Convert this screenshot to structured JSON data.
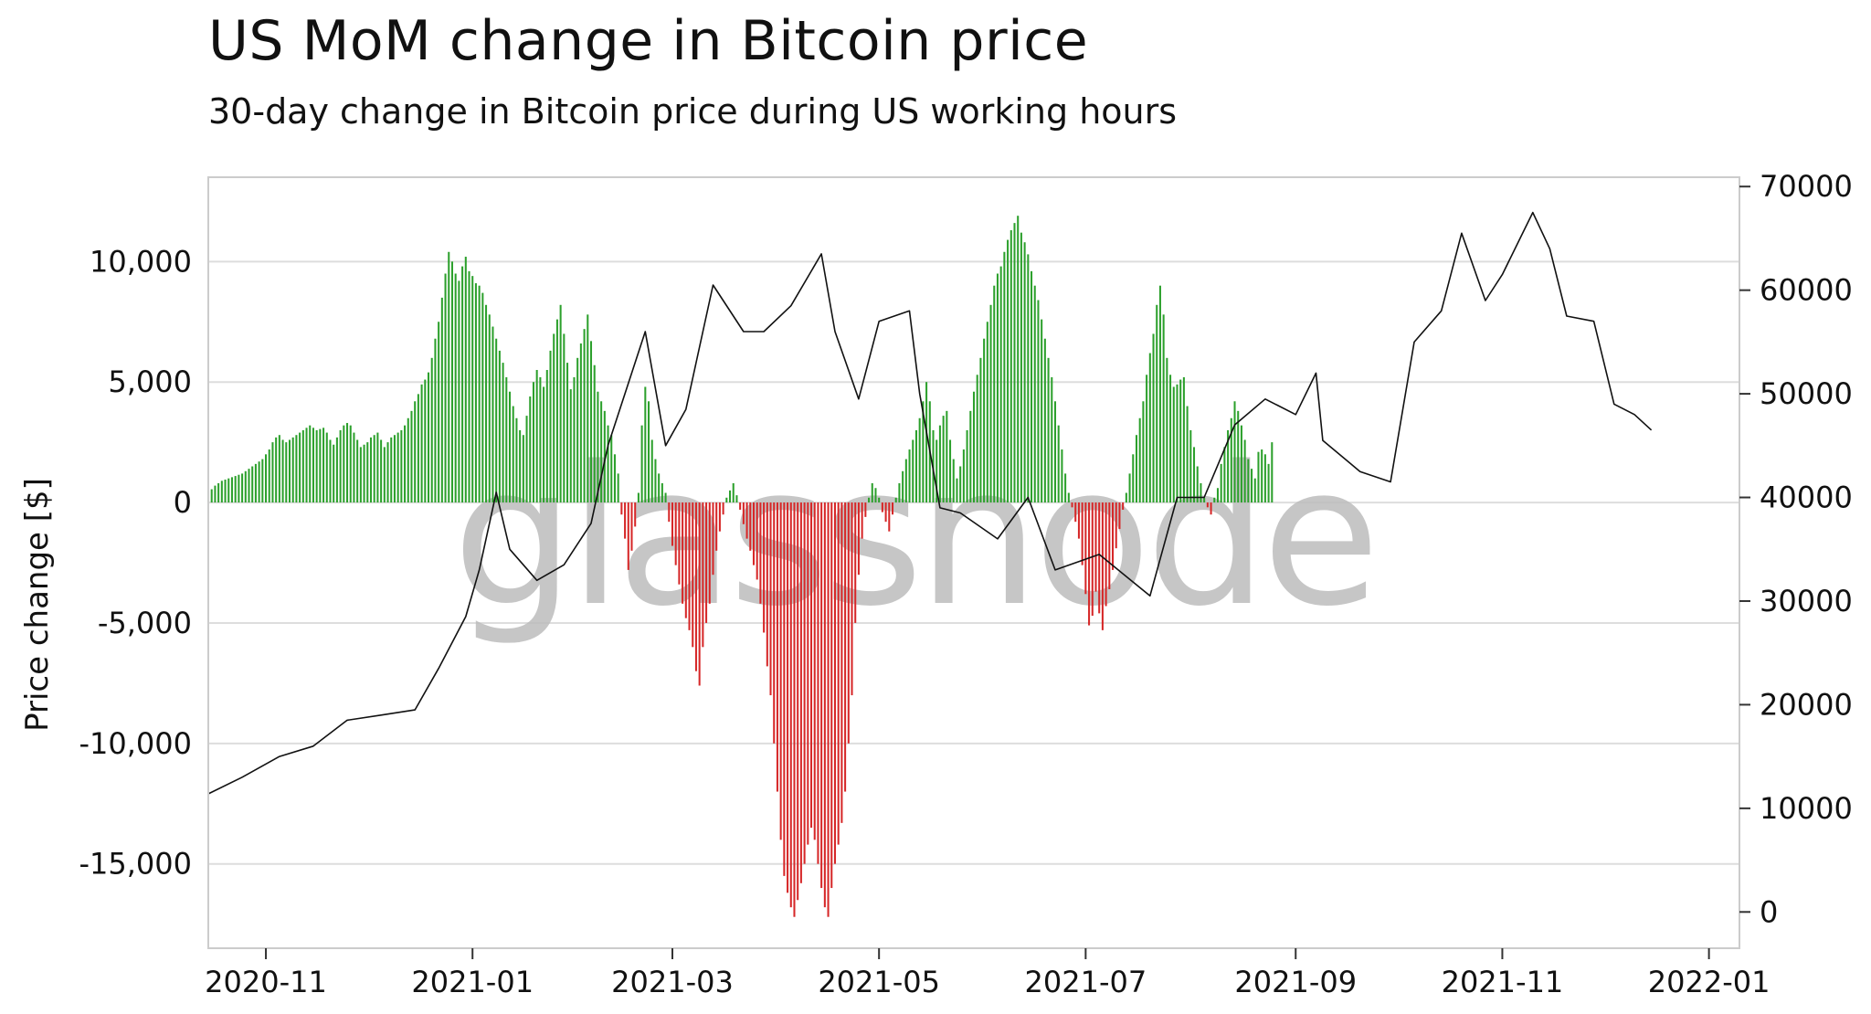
{
  "chart_data": {
    "type": "bar+line",
    "title": "US MoM change in Bitcoin price",
    "subtitle": "30-day change in Bitcoin price during US working hours",
    "ylabel": "Price change [$]",
    "ylabel_right": "",
    "watermark": "glassnode",
    "x_range": [
      "2020-10-15",
      "2022-01-10"
    ],
    "ylim": [
      -18500,
      13500
    ],
    "ylim_right": [
      -3500,
      70900
    ],
    "x_ticks": [
      "2020-11",
      "2021-01",
      "2021-03",
      "2021-05",
      "2021-07",
      "2021-09",
      "2021-11",
      "2022-01"
    ],
    "y_ticks": [
      -15000,
      -10000,
      -5000,
      0,
      5000,
      10000
    ],
    "y_tick_labels": [
      "-15,000",
      "-10,000",
      "-5,000",
      "0",
      "5,000",
      "10,000"
    ],
    "y_right_ticks": [
      0,
      10000,
      20000,
      30000,
      40000,
      50000,
      60000,
      70000
    ],
    "y_right_tick_labels": [
      "0",
      "10000",
      "20000",
      "30000",
      "40000",
      "50000",
      "60000",
      "70000"
    ],
    "colors": {
      "positive": "#2ca02c",
      "negative": "#d62728",
      "price_line": "#111111",
      "grid": "#dddddd"
    },
    "series": [
      {
        "name": "30-day change",
        "kind": "bar",
        "x_start": "2020-10-15",
        "x_step_days": 1,
        "values": [
          500,
          550,
          700,
          800,
          900,
          950,
          1000,
          1050,
          1100,
          1150,
          1200,
          1300,
          1400,
          1500,
          1600,
          1700,
          1800,
          2000,
          2200,
          2500,
          2700,
          2800,
          2600,
          2500,
          2600,
          2700,
          2800,
          2900,
          3000,
          3100,
          3200,
          3100,
          3000,
          3050,
          3100,
          2900,
          2600,
          2400,
          2700,
          3000,
          3200,
          3300,
          3200,
          2900,
          2600,
          2300,
          2400,
          2500,
          2700,
          2800,
          2900,
          2600,
          2300,
          2500,
          2700,
          2800,
          2900,
          3000,
          3200,
          3500,
          3800,
          4200,
          4500,
          4900,
          5100,
          5400,
          6000,
          6800,
          7500,
          8500,
          9500,
          10400,
          10000,
          9500,
          9200,
          9800,
          10200,
          9600,
          9400,
          9100,
          9000,
          8700,
          8200,
          7800,
          7300,
          6800,
          6300,
          5800,
          5200,
          4600,
          4000,
          3500,
          3000,
          2800,
          3600,
          4400,
          5000,
          5500,
          5200,
          4800,
          5500,
          6300,
          7000,
          7600,
          8200,
          7000,
          5800,
          4700,
          5200,
          6000,
          6600,
          7200,
          7800,
          6700,
          5700,
          4600,
          4200,
          3800,
          3200,
          2800,
          2000,
          1200,
          -500,
          -1500,
          -2800,
          -2000,
          -1000,
          400,
          3200,
          4800,
          4200,
          2600,
          1800,
          1200,
          800,
          400,
          -800,
          -1800,
          -2600,
          -3400,
          -4200,
          -4800,
          -5300,
          -6000,
          -7000,
          -7600,
          -6000,
          -5000,
          -4200,
          -3000,
          -2000,
          -1200,
          -500,
          200,
          500,
          800,
          300,
          -300,
          -900,
          -1500,
          -2000,
          -2600,
          -3200,
          -4200,
          -5400,
          -6800,
          -8000,
          -10000,
          -12000,
          -14000,
          -15500,
          -16200,
          -16800,
          -17200,
          -16500,
          -15800,
          -15000,
          -14200,
          -13500,
          -14000,
          -15000,
          -16000,
          -16800,
          -17200,
          -16000,
          -15000,
          -14200,
          -13300,
          -12000,
          -10000,
          -8000,
          -5000,
          -3000,
          -1500,
          -600,
          200,
          800,
          600,
          200,
          -400,
          -800,
          -1200,
          -500,
          200,
          800,
          1300,
          1800,
          2200,
          2600,
          3000,
          3500,
          4200,
          5000,
          4200,
          3000,
          2600,
          3200,
          3600,
          3800,
          2600,
          1800,
          1000,
          1500,
          2200,
          3000,
          3800,
          4600,
          5300,
          6000,
          6800,
          7500,
          8200,
          9000,
          9500,
          9800,
          10400,
          10900,
          11300,
          11600,
          11900,
          11200,
          10800,
          10300,
          9600,
          9000,
          8400,
          7600,
          6800,
          6000,
          5200,
          4200,
          3200,
          2200,
          1200,
          400,
          -200,
          -800,
          -1500,
          -2600,
          -3800,
          -5100,
          -4700,
          -3700,
          -4600,
          -5300,
          -4300,
          -3600,
          -2800,
          -1900,
          -1100,
          -300,
          400,
          1200,
          2000,
          2800,
          3500,
          4200,
          5300,
          6200,
          7000,
          8200,
          9000,
          7800,
          6000,
          5300,
          4800,
          4900,
          5100,
          5200,
          4000,
          3000,
          2300,
          1500,
          800,
          200,
          -200,
          -500,
          200,
          600,
          1600,
          2300,
          3000,
          3500,
          4200,
          3800,
          3200,
          2600,
          1800,
          1400,
          1000,
          2100,
          2200,
          2000,
          1600,
          2500
        ]
      },
      {
        "name": "Bitcoin price",
        "kind": "line",
        "axis": "right",
        "points": [
          [
            "2020-10-15",
            11400
          ],
          [
            "2020-10-25",
            13000
          ],
          [
            "2020-11-05",
            15000
          ],
          [
            "2020-11-15",
            16000
          ],
          [
            "2020-11-25",
            18500
          ],
          [
            "2020-12-05",
            19000
          ],
          [
            "2020-12-15",
            19500
          ],
          [
            "2020-12-22",
            23500
          ],
          [
            "2020-12-30",
            28500
          ],
          [
            "2021-01-03",
            33000
          ],
          [
            "2021-01-08",
            40500
          ],
          [
            "2021-01-12",
            35000
          ],
          [
            "2021-01-20",
            32000
          ],
          [
            "2021-01-28",
            33500
          ],
          [
            "2021-02-05",
            37500
          ],
          [
            "2021-02-10",
            45000
          ],
          [
            "2021-02-21",
            56000
          ],
          [
            "2021-02-27",
            45000
          ],
          [
            "2021-03-05",
            48500
          ],
          [
            "2021-03-13",
            60500
          ],
          [
            "2021-03-22",
            56000
          ],
          [
            "2021-03-28",
            56000
          ],
          [
            "2021-04-05",
            58500
          ],
          [
            "2021-04-14",
            63500
          ],
          [
            "2021-04-18",
            56000
          ],
          [
            "2021-04-25",
            49500
          ],
          [
            "2021-05-01",
            57000
          ],
          [
            "2021-05-10",
            58000
          ],
          [
            "2021-05-13",
            50000
          ],
          [
            "2021-05-19",
            39000
          ],
          [
            "2021-05-25",
            38500
          ],
          [
            "2021-06-05",
            36000
          ],
          [
            "2021-06-14",
            40000
          ],
          [
            "2021-06-22",
            33000
          ],
          [
            "2021-07-05",
            34500
          ],
          [
            "2021-07-20",
            30500
          ],
          [
            "2021-07-28",
            40000
          ],
          [
            "2021-08-05",
            40000
          ],
          [
            "2021-08-14",
            47000
          ],
          [
            "2021-08-23",
            49500
          ],
          [
            "2021-09-01",
            48000
          ],
          [
            "2021-09-07",
            52000
          ],
          [
            "2021-09-09",
            45500
          ],
          [
            "2021-09-20",
            42500
          ],
          [
            "2021-09-29",
            41500
          ],
          [
            "2021-10-06",
            55000
          ],
          [
            "2021-10-14",
            58000
          ],
          [
            "2021-10-20",
            65500
          ],
          [
            "2021-10-27",
            59000
          ],
          [
            "2021-11-01",
            61500
          ],
          [
            "2021-11-10",
            67500
          ],
          [
            "2021-11-15",
            64000
          ],
          [
            "2021-11-20",
            57500
          ],
          [
            "2021-11-28",
            57000
          ],
          [
            "2021-12-04",
            49000
          ],
          [
            "2021-12-10",
            48000
          ],
          [
            "2021-12-15",
            46500
          ]
        ]
      }
    ]
  }
}
